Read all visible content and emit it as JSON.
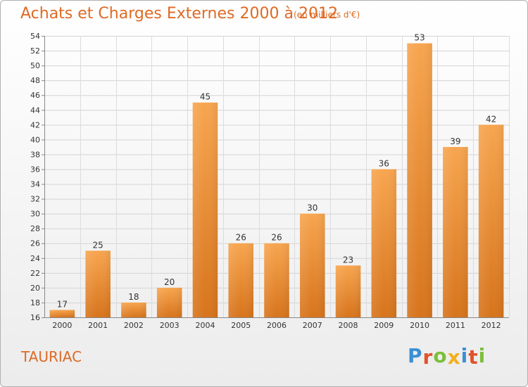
{
  "header": {
    "title": "Achats et Charges Externes 2000 à 2012",
    "subtitle": "(en milliers d'€)"
  },
  "footer": {
    "commune": "TAURIAC",
    "logo_letters": [
      "P",
      "r",
      "o",
      "x",
      "i",
      "t",
      "i"
    ],
    "logo_colors": [
      "#3a8fd6",
      "#e0522b",
      "#7cbf3a",
      "#f2b01e",
      "#3a8fd6",
      "#e0522b",
      "#7cbf3a"
    ]
  },
  "colors": {
    "bar_top": "#f7a54f",
    "bar_bottom": "#d7741c",
    "accent": "#de6a24"
  },
  "chart_data": {
    "type": "bar",
    "title": "Achats et Charges Externes 2000 à 2012",
    "subtitle": "(en milliers d'€)",
    "xlabel": "",
    "ylabel": "",
    "categories": [
      "2000",
      "2001",
      "2002",
      "2003",
      "2004",
      "2005",
      "2006",
      "2007",
      "2008",
      "2009",
      "2010",
      "2011",
      "2012"
    ],
    "values": [
      17,
      25,
      18,
      20,
      45,
      26,
      26,
      30,
      23,
      36,
      53,
      39,
      42
    ],
    "ylim": [
      16,
      54
    ],
    "yticks": [
      16,
      18,
      20,
      22,
      24,
      26,
      28,
      30,
      32,
      34,
      36,
      38,
      40,
      42,
      44,
      46,
      48,
      50,
      52,
      54
    ],
    "grid": true,
    "legend": "none"
  }
}
